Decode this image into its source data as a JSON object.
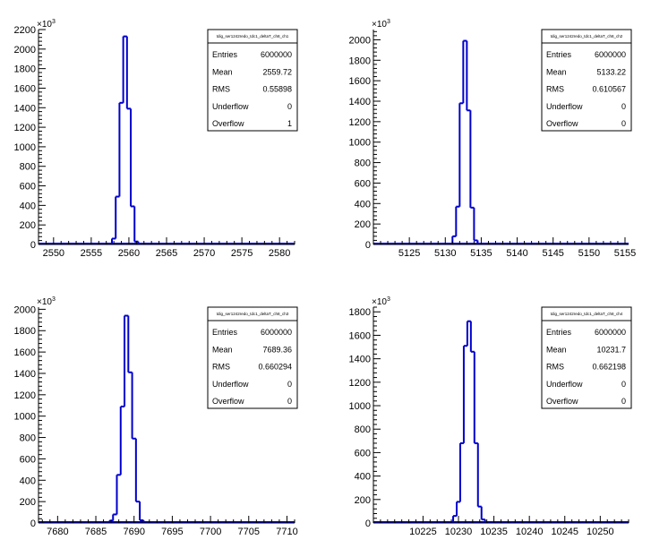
{
  "chart_data": [
    {
      "type": "histogram",
      "stats_title": "tdig_ser1242redo_tdc1_deltaT_ch8_ch1",
      "stats": {
        "Entries": "6000000",
        "Mean": "2559.72",
        "RMS": "0.55898",
        "Underflow": "0",
        "Overflow": "1"
      },
      "xlim": [
        2548,
        2582
      ],
      "ylim": [
        0,
        2200000
      ],
      "y_multiplier": "x10^3",
      "x_ticks": [
        2550,
        2555,
        2560,
        2565,
        2570,
        2575,
        2580
      ],
      "y_ticks": [
        0,
        200,
        400,
        600,
        800,
        1000,
        1200,
        1400,
        1600,
        1800,
        2000,
        2200
      ],
      "bins": [
        {
          "x0": 2557.75,
          "x1": 2558.25,
          "y": 60000
        },
        {
          "x0": 2558.25,
          "x1": 2558.75,
          "y": 490000
        },
        {
          "x0": 2558.75,
          "x1": 2559.25,
          "y": 1450000
        },
        {
          "x0": 2559.25,
          "x1": 2559.75,
          "y": 2130000
        },
        {
          "x0": 2559.75,
          "x1": 2560.25,
          "y": 1390000
        },
        {
          "x0": 2560.25,
          "x1": 2560.75,
          "y": 390000
        },
        {
          "x0": 2560.75,
          "x1": 2561.25,
          "y": 30000
        }
      ]
    },
    {
      "type": "histogram",
      "stats_title": "tdig_ser1242redo_tdc1_deltaT_ch8_ch2",
      "stats": {
        "Entries": "6000000",
        "Mean": "5133.22",
        "RMS": "0.610567",
        "Underflow": "0",
        "Overflow": "0"
      },
      "xlim": [
        5120,
        5155.5
      ],
      "ylim": [
        0,
        2100000
      ],
      "y_multiplier": "x10^3",
      "x_ticks": [
        5125,
        5130,
        5135,
        5140,
        5145,
        5150,
        5155
      ],
      "y_ticks": [
        0,
        200,
        400,
        600,
        800,
        1000,
        1200,
        1400,
        1600,
        1800,
        2000
      ],
      "bins": [
        {
          "x0": 5131.0,
          "x1": 5131.5,
          "y": 80000
        },
        {
          "x0": 5131.5,
          "x1": 5132.0,
          "y": 370000
        },
        {
          "x0": 5132.0,
          "x1": 5132.5,
          "y": 1380000
        },
        {
          "x0": 5132.5,
          "x1": 5133.0,
          "y": 1990000
        },
        {
          "x0": 5133.0,
          "x1": 5133.5,
          "y": 1310000
        },
        {
          "x0": 5133.5,
          "x1": 5134.0,
          "y": 360000
        },
        {
          "x0": 5134.0,
          "x1": 5134.5,
          "y": 40000
        }
      ]
    },
    {
      "type": "histogram",
      "stats_title": "tdig_ser1242redo_tdc1_deltaT_ch8_ch3",
      "stats": {
        "Entries": "6000000",
        "Mean": "7689.36",
        "RMS": "0.660294",
        "Underflow": "0",
        "Overflow": "0"
      },
      "xlim": [
        7677.5,
        7711
      ],
      "ylim": [
        0,
        2020000
      ],
      "y_multiplier": "x10^3",
      "x_ticks": [
        7680,
        7685,
        7690,
        7695,
        7700,
        7705,
        7710
      ],
      "y_ticks": [
        0,
        200,
        400,
        600,
        800,
        1000,
        1200,
        1400,
        1600,
        1800,
        2000
      ],
      "bins": [
        {
          "x0": 7686.75,
          "x1": 7687.25,
          "y": 20000
        },
        {
          "x0": 7687.25,
          "x1": 7687.75,
          "y": 80000
        },
        {
          "x0": 7687.75,
          "x1": 7688.25,
          "y": 450000
        },
        {
          "x0": 7688.25,
          "x1": 7688.75,
          "y": 1090000
        },
        {
          "x0": 7688.75,
          "x1": 7689.25,
          "y": 1940000
        },
        {
          "x0": 7689.25,
          "x1": 7689.75,
          "y": 1410000
        },
        {
          "x0": 7689.75,
          "x1": 7690.25,
          "y": 790000
        },
        {
          "x0": 7690.25,
          "x1": 7690.75,
          "y": 200000
        },
        {
          "x0": 7690.75,
          "x1": 7691.25,
          "y": 25000
        }
      ]
    },
    {
      "type": "histogram",
      "stats_title": "tdig_ser1242redo_tdc1_deltaT_ch8_ch4",
      "stats": {
        "Entries": "6000000",
        "Mean": "10231.7",
        "RMS": "0.662198",
        "Underflow": "0",
        "Overflow": "0"
      },
      "xlim": [
        10218,
        10254
      ],
      "ylim": [
        0,
        1840000
      ],
      "y_multiplier": "x10^3",
      "x_ticks": [
        10225,
        10230,
        10235,
        10240,
        10245,
        10250
      ],
      "y_ticks": [
        0,
        200,
        400,
        600,
        800,
        1000,
        1200,
        1400,
        1600,
        1800
      ],
      "bins": [
        {
          "x0": 10229.25,
          "x1": 10229.75,
          "y": 60000
        },
        {
          "x0": 10229.75,
          "x1": 10230.25,
          "y": 180000
        },
        {
          "x0": 10230.25,
          "x1": 10230.75,
          "y": 680000
        },
        {
          "x0": 10230.75,
          "x1": 10231.25,
          "y": 1510000
        },
        {
          "x0": 10231.25,
          "x1": 10231.75,
          "y": 1720000
        },
        {
          "x0": 10231.75,
          "x1": 10232.25,
          "y": 1460000
        },
        {
          "x0": 10232.25,
          "x1": 10232.75,
          "y": 680000
        },
        {
          "x0": 10232.75,
          "x1": 10233.25,
          "y": 140000
        },
        {
          "x0": 10233.25,
          "x1": 10233.75,
          "y": 30000
        }
      ]
    }
  ],
  "style": {
    "line_color": "#0000cc",
    "axis_color": "#000000",
    "background": "#ffffff"
  }
}
